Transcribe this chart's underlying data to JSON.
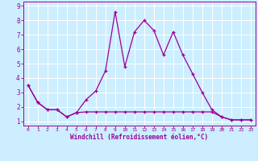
{
  "xlabel": "Windchill (Refroidissement éolien,°C)",
  "background_color": "#cceeff",
  "grid_color": "#ffffff",
  "line_color": "#990099",
  "xlim": [
    -0.5,
    23.5
  ],
  "ylim": [
    0.7,
    9.3
  ],
  "xticks": [
    0,
    1,
    2,
    3,
    4,
    5,
    6,
    7,
    8,
    9,
    10,
    11,
    12,
    13,
    14,
    15,
    16,
    17,
    18,
    19,
    20,
    21,
    22,
    23
  ],
  "yticks": [
    1,
    2,
    3,
    4,
    5,
    6,
    7,
    8,
    9
  ],
  "series1_x": [
    0,
    1,
    2,
    3,
    4,
    5,
    6,
    7,
    8,
    9,
    10,
    11,
    12,
    13,
    14,
    15,
    16,
    17,
    18,
    19,
    20,
    21,
    22,
    23
  ],
  "series1_y": [
    3.5,
    2.3,
    1.8,
    1.8,
    1.3,
    1.6,
    2.5,
    3.1,
    4.5,
    8.6,
    4.8,
    7.2,
    8.0,
    7.3,
    5.6,
    7.2,
    5.6,
    4.3,
    3.0,
    1.8,
    1.3,
    1.1,
    1.1,
    1.1
  ],
  "series2_x": [
    0,
    1,
    2,
    3,
    4,
    5,
    6,
    7,
    8,
    9,
    10,
    11,
    12,
    13,
    14,
    15,
    16,
    17,
    18,
    19,
    20,
    21,
    22,
    23
  ],
  "series2_y": [
    3.5,
    2.3,
    1.8,
    1.8,
    1.3,
    1.6,
    1.65,
    1.65,
    1.65,
    1.65,
    1.65,
    1.65,
    1.65,
    1.65,
    1.65,
    1.65,
    1.65,
    1.65,
    1.65,
    1.65,
    1.3,
    1.1,
    1.1,
    1.1
  ]
}
